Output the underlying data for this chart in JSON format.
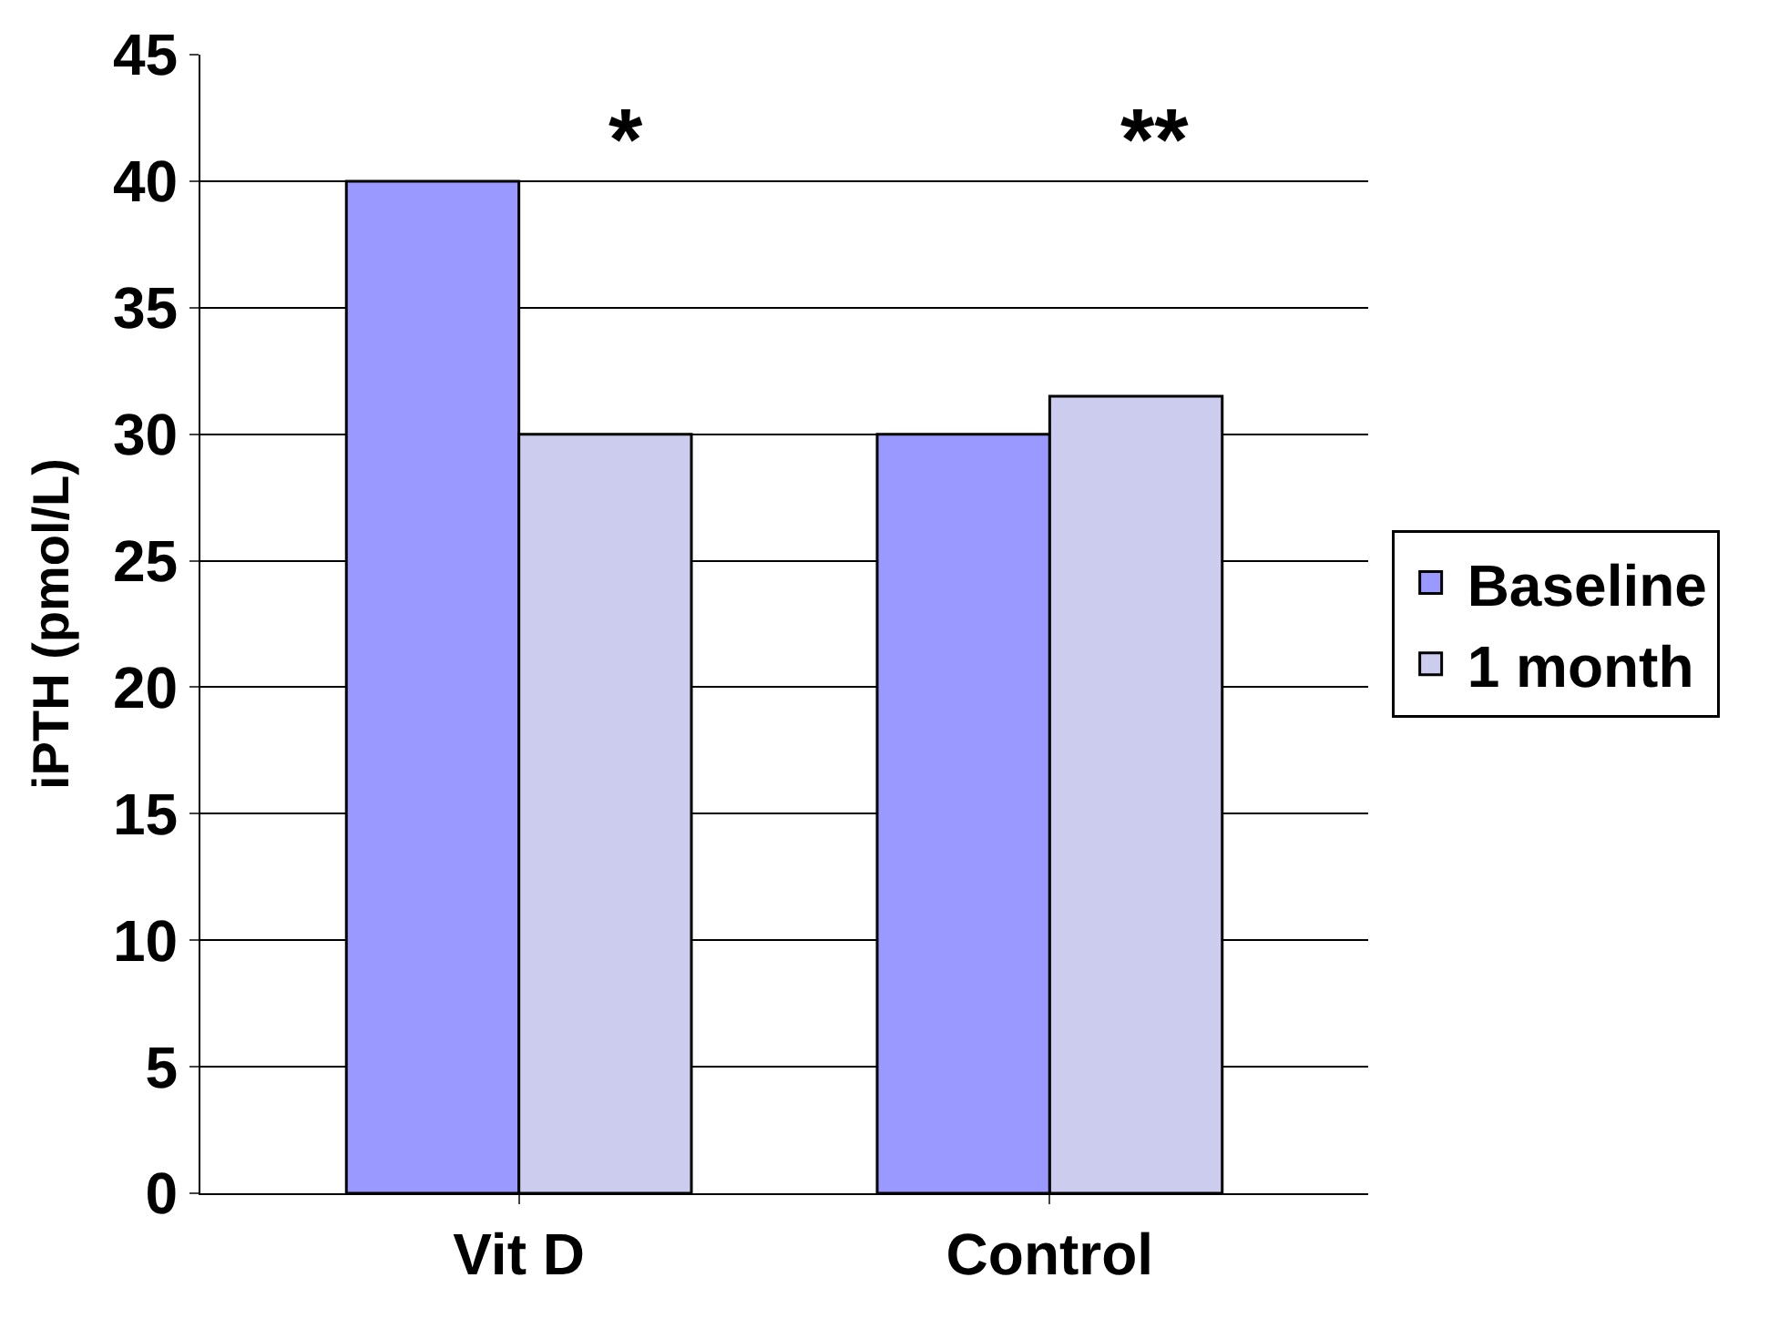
{
  "chart_data": {
    "type": "bar",
    "ylabel": "iPTH (pmol/L)",
    "categories": [
      "Vit D",
      "Control"
    ],
    "series": [
      {
        "name": "Baseline",
        "color": "#9999ff",
        "values": [
          40,
          30
        ]
      },
      {
        "name": "1 month",
        "color": "#ccccee",
        "values": [
          30,
          31.5
        ]
      }
    ],
    "ylim": [
      0,
      45
    ],
    "yticks": [
      0,
      5,
      10,
      15,
      20,
      25,
      30,
      35,
      40,
      45
    ],
    "grid": "y",
    "legend": "right",
    "annotations": [
      "*",
      "**"
    ]
  }
}
